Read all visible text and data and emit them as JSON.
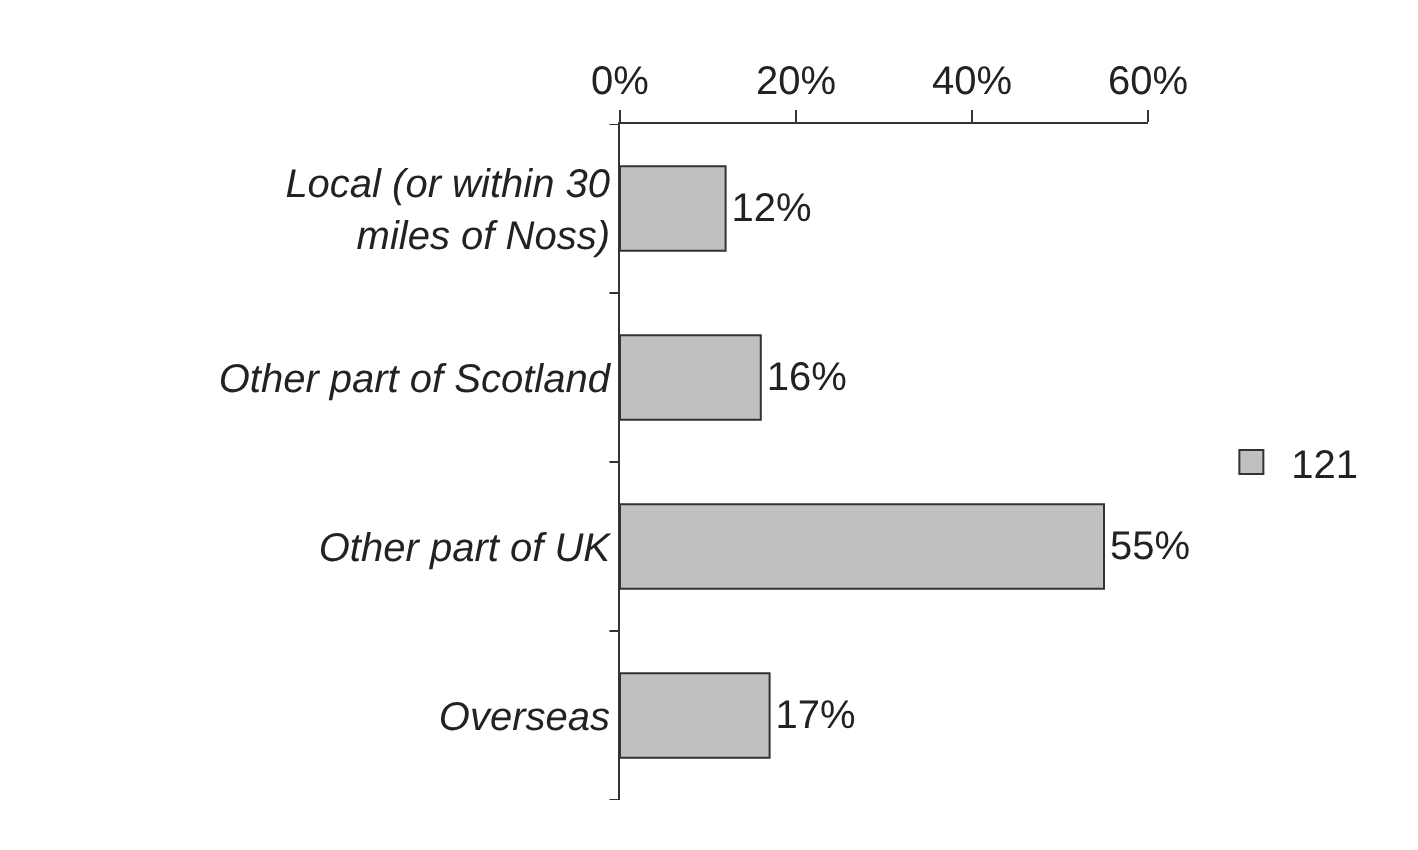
{
  "chart_data": {
    "type": "bar",
    "orientation": "horizontal",
    "categories": [
      "Local (or within 30 miles of Noss)",
      "Other part of Scotland",
      "Other part of UK",
      "Overseas"
    ],
    "series": [
      {
        "name": "121",
        "color": "#c0c0c0",
        "values": [
          12,
          16,
          55,
          17
        ],
        "value_labels": [
          "12%",
          "16%",
          "55%",
          "17%"
        ]
      }
    ],
    "xlim": [
      0,
      60
    ],
    "xticks": [
      {
        "value": 0,
        "label": "0%"
      },
      {
        "value": 20,
        "label": "20%"
      },
      {
        "value": 40,
        "label": "40%"
      },
      {
        "value": 60,
        "label": "60%"
      }
    ],
    "legend": "right"
  }
}
